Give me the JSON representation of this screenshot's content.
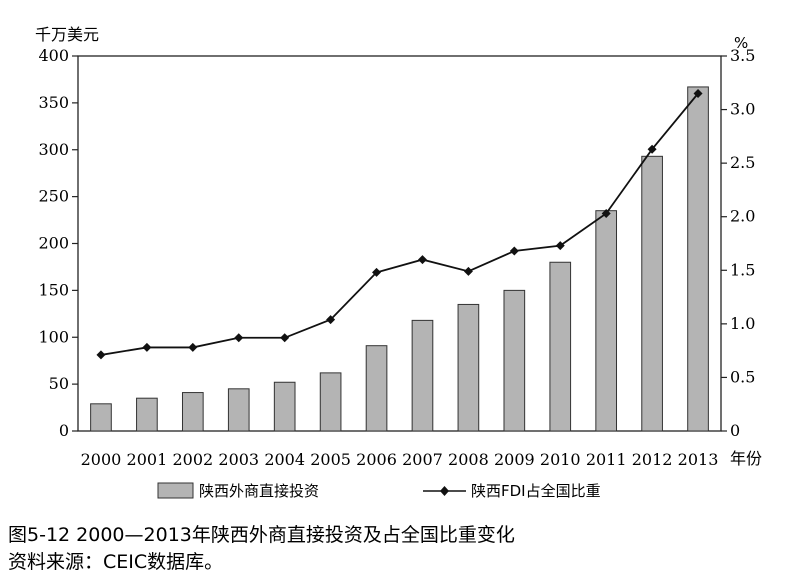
{
  "chart_data": {
    "type": "bar+line",
    "y_left_unit": "千万美元",
    "y_right_unit": "%",
    "x_unit": "年份",
    "categories": [
      "2000",
      "2001",
      "2002",
      "2003",
      "2004",
      "2005",
      "2006",
      "2007",
      "2008",
      "2009",
      "2010",
      "2011",
      "2012",
      "2013"
    ],
    "series": [
      {
        "name": "陕西外商直接投资",
        "type": "bar",
        "axis": "left",
        "values": [
          29,
          35,
          41,
          45,
          52,
          62,
          91,
          118,
          135,
          150,
          180,
          235,
          293,
          367
        ]
      },
      {
        "name": "陕西FDI占全国比重",
        "type": "line",
        "axis": "right",
        "values": [
          0.71,
          0.78,
          0.78,
          0.87,
          0.87,
          1.04,
          1.48,
          1.6,
          1.49,
          1.68,
          1.73,
          2.03,
          2.63,
          3.15
        ]
      }
    ],
    "y_left_lim": [
      0,
      400
    ],
    "y_left_ticks": [
      "0",
      "50",
      "100",
      "150",
      "200",
      "250",
      "300",
      "350",
      "400"
    ],
    "y_right_lim": [
      0,
      3.5
    ],
    "y_right_ticks": [
      "0",
      "0.5",
      "1.0",
      "1.5",
      "2.0",
      "2.5",
      "3.0",
      "3.5"
    ],
    "grid": false,
    "legend_position": "bottom",
    "colors": {
      "bar": "#b4b4b4",
      "bar_stroke": "#333333",
      "line": "#111111"
    }
  },
  "caption": {
    "title": "图5-12  2000—2013年陕西外商直接投资及占全国比重变化",
    "source": "资料来源：CEIC数据库。"
  }
}
